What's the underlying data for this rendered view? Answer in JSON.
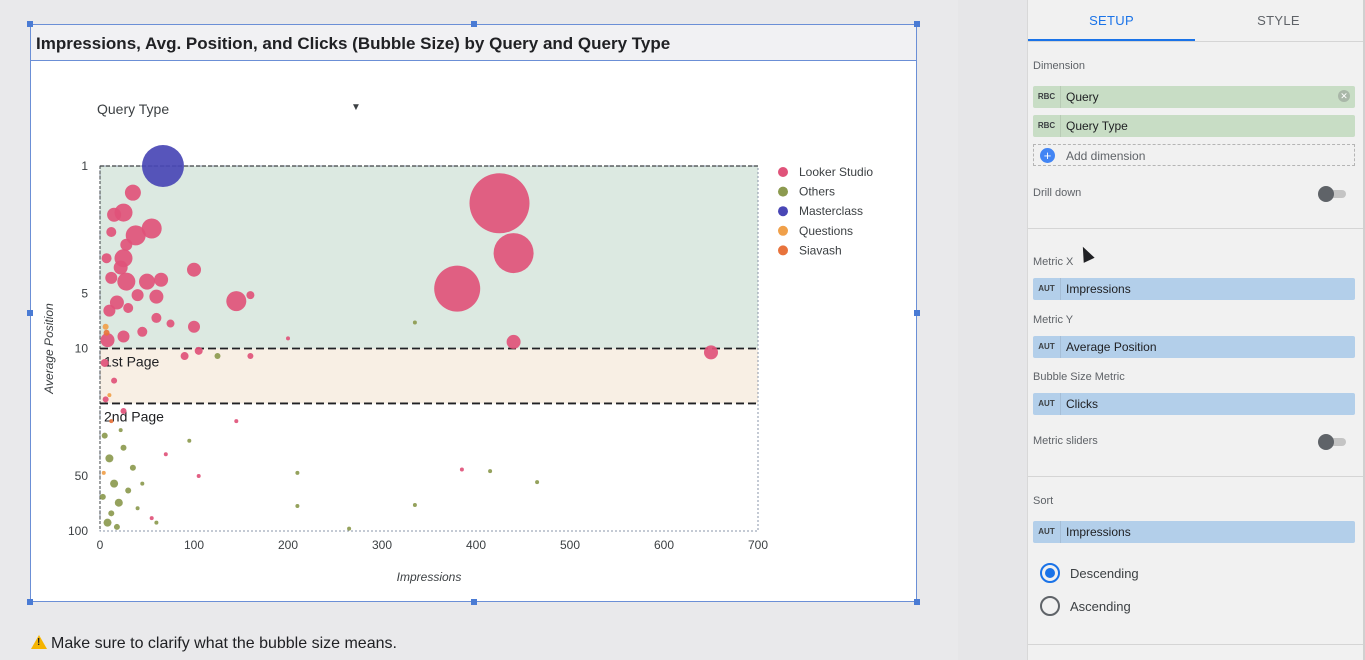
{
  "chart": {
    "title": "Impressions, Avg. Position, and Clicks (Bubble Size) by Query and Query Type",
    "filter_label": "Query Type",
    "band_labels": [
      "1st Page",
      "2nd Page"
    ]
  },
  "note": {
    "text": "Make sure to clarify what the bubble size means."
  },
  "chart_data": {
    "type": "scatter",
    "title": "Impressions, Avg. Position, and Clicks (Bubble Size) by Query and Query Type",
    "xlabel": "Impressions",
    "ylabel": "Average Position",
    "xlim": [
      0,
      700
    ],
    "ylim": [
      1,
      100
    ],
    "y_scale": "log",
    "y_reversed": true,
    "xticks": [
      "0",
      "100",
      "200",
      "300",
      "400",
      "500",
      "600",
      "700"
    ],
    "yticks": [
      "1",
      "5",
      "10",
      "50",
      "100"
    ],
    "legend_position": "right",
    "bubble_size": "Clicks",
    "series": [
      {
        "name": "Looker Studio",
        "color": "#e0537a",
        "points": [
          {
            "x": 425,
            "y": 1.6,
            "size": 30
          },
          {
            "x": 440,
            "y": 3.0,
            "size": 20
          },
          {
            "x": 380,
            "y": 4.7,
            "size": 23
          },
          {
            "x": 440,
            "y": 9.2,
            "size": 7
          },
          {
            "x": 650,
            "y": 10.5,
            "size": 7
          },
          {
            "x": 145,
            "y": 5.5,
            "size": 10
          },
          {
            "x": 100,
            "y": 3.7,
            "size": 7
          },
          {
            "x": 160,
            "y": 5.1,
            "size": 4
          },
          {
            "x": 55,
            "y": 2.2,
            "size": 10
          },
          {
            "x": 38,
            "y": 2.4,
            "size": 10
          },
          {
            "x": 35,
            "y": 1.4,
            "size": 8
          },
          {
            "x": 25,
            "y": 1.8,
            "size": 9
          },
          {
            "x": 15,
            "y": 1.85,
            "size": 7
          },
          {
            "x": 28,
            "y": 2.7,
            "size": 6
          },
          {
            "x": 25,
            "y": 3.2,
            "size": 9
          },
          {
            "x": 22,
            "y": 3.6,
            "size": 7
          },
          {
            "x": 50,
            "y": 4.3,
            "size": 8
          },
          {
            "x": 65,
            "y": 4.2,
            "size": 7
          },
          {
            "x": 28,
            "y": 4.3,
            "size": 9
          },
          {
            "x": 12,
            "y": 4.1,
            "size": 6
          },
          {
            "x": 60,
            "y": 5.2,
            "size": 7
          },
          {
            "x": 40,
            "y": 5.1,
            "size": 6
          },
          {
            "x": 18,
            "y": 5.6,
            "size": 7
          },
          {
            "x": 10,
            "y": 6.2,
            "size": 6
          },
          {
            "x": 60,
            "y": 6.8,
            "size": 5
          },
          {
            "x": 100,
            "y": 7.6,
            "size": 6
          },
          {
            "x": 75,
            "y": 7.3,
            "size": 4
          },
          {
            "x": 45,
            "y": 8.1,
            "size": 5
          },
          {
            "x": 25,
            "y": 8.6,
            "size": 6
          },
          {
            "x": 8,
            "y": 9.0,
            "size": 7
          },
          {
            "x": 90,
            "y": 11.0,
            "size": 4
          },
          {
            "x": 105,
            "y": 10.3,
            "size": 4
          },
          {
            "x": 160,
            "y": 11.0,
            "size": 3
          },
          {
            "x": 12,
            "y": 2.3,
            "size": 5
          },
          {
            "x": 7,
            "y": 3.2,
            "size": 5
          },
          {
            "x": 30,
            "y": 6.0,
            "size": 5
          },
          {
            "x": 5,
            "y": 12.0,
            "size": 4
          },
          {
            "x": 15,
            "y": 15.0,
            "size": 3
          },
          {
            "x": 6,
            "y": 19.0,
            "size": 3
          },
          {
            "x": 25,
            "y": 22.0,
            "size": 3
          },
          {
            "x": 145,
            "y": 25.0,
            "size": 2
          },
          {
            "x": 385,
            "y": 46.0,
            "size": 2
          },
          {
            "x": 70,
            "y": 38.0,
            "size": 2
          },
          {
            "x": 105,
            "y": 50.0,
            "size": 2
          },
          {
            "x": 55,
            "y": 85.0,
            "size": 2
          },
          {
            "x": 200,
            "y": 8.8,
            "size": 2
          }
        ]
      },
      {
        "name": "Others",
        "color": "#8c9a4f",
        "points": [
          {
            "x": 10,
            "y": 40.0,
            "size": 4
          },
          {
            "x": 15,
            "y": 55.0,
            "size": 4
          },
          {
            "x": 20,
            "y": 70.0,
            "size": 4
          },
          {
            "x": 8,
            "y": 90.0,
            "size": 4
          },
          {
            "x": 25,
            "y": 35.0,
            "size": 3
          },
          {
            "x": 30,
            "y": 60.0,
            "size": 3
          },
          {
            "x": 5,
            "y": 30.0,
            "size": 3
          },
          {
            "x": 12,
            "y": 80.0,
            "size": 3
          },
          {
            "x": 35,
            "y": 45.0,
            "size": 3
          },
          {
            "x": 18,
            "y": 95.0,
            "size": 3
          },
          {
            "x": 40,
            "y": 75.0,
            "size": 2
          },
          {
            "x": 45,
            "y": 55.0,
            "size": 2
          },
          {
            "x": 3,
            "y": 65.0,
            "size": 3
          },
          {
            "x": 22,
            "y": 28.0,
            "size": 2
          },
          {
            "x": 125,
            "y": 11.0,
            "size": 3
          },
          {
            "x": 335,
            "y": 7.2,
            "size": 2
          },
          {
            "x": 210,
            "y": 48.0,
            "size": 2
          },
          {
            "x": 210,
            "y": 73.0,
            "size": 2
          },
          {
            "x": 335,
            "y": 72.0,
            "size": 2
          },
          {
            "x": 415,
            "y": 47.0,
            "size": 2
          },
          {
            "x": 465,
            "y": 54.0,
            "size": 2
          },
          {
            "x": 265,
            "y": 97.0,
            "size": 2
          },
          {
            "x": 95,
            "y": 32.0,
            "size": 2
          },
          {
            "x": 60,
            "y": 90.0,
            "size": 2
          }
        ]
      },
      {
        "name": "Masterclass",
        "color": "#4946b5",
        "points": [
          {
            "x": 67,
            "y": 1.0,
            "size": 21
          }
        ]
      },
      {
        "name": "Questions",
        "color": "#f0a04a",
        "points": [
          {
            "x": 6,
            "y": 7.6,
            "size": 3
          },
          {
            "x": 10,
            "y": 18.0,
            "size": 2
          },
          {
            "x": 4,
            "y": 48.0,
            "size": 2
          }
        ]
      },
      {
        "name": "Siavash",
        "color": "#e8733c",
        "points": [
          {
            "x": 7,
            "y": 8.2,
            "size": 3
          },
          {
            "x": 12,
            "y": 25.0,
            "size": 2
          }
        ]
      }
    ],
    "reference_bands": [
      {
        "label": "",
        "from": 1,
        "to": 10,
        "color": "#dce9e1"
      },
      {
        "label": "1st Page",
        "from": 10,
        "to": 20,
        "color": "#f8efe4"
      },
      {
        "label": "2nd Page",
        "from": 20,
        "to": 100,
        "color": "#ffffff"
      }
    ],
    "reference_lines": [
      10,
      20
    ]
  },
  "panel": {
    "tabs": [
      {
        "label": "SETUP",
        "active": true
      },
      {
        "label": "STYLE",
        "active": false
      }
    ],
    "dimension_label": "Dimension",
    "dimensions": [
      {
        "type": "RBC",
        "name": "Query"
      },
      {
        "type": "RBC",
        "name": "Query Type"
      }
    ],
    "add_dimension": "Add dimension",
    "drill_down": "Drill down",
    "metric_x_label": "Metric X",
    "metric_x": {
      "type": "AUT",
      "name": "Impressions"
    },
    "metric_y_label": "Metric Y",
    "metric_y": {
      "type": "AUT",
      "name": "Average Position"
    },
    "bubble_label": "Bubble Size Metric",
    "bubble": {
      "type": "AUT",
      "name": "Clicks"
    },
    "metric_sliders": "Metric sliders",
    "sort_label": "Sort",
    "sort": {
      "type": "AUT",
      "name": "Impressions"
    },
    "descending": "Descending",
    "ascending": "Ascending"
  }
}
